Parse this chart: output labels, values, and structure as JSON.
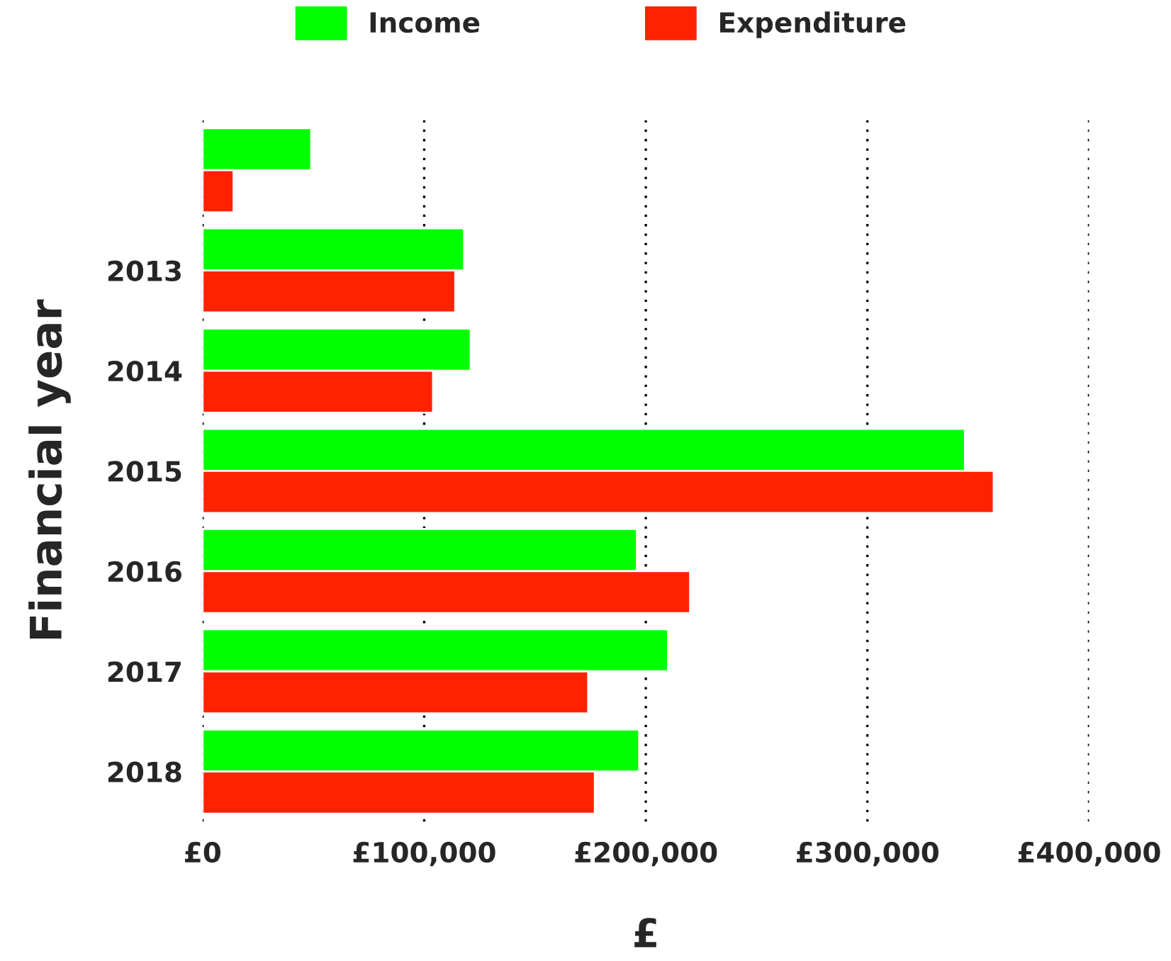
{
  "chart_data": {
    "type": "bar",
    "orientation": "horizontal",
    "xlabel": "£",
    "ylabel": "Financial year",
    "categories": [
      null,
      "2013",
      "2014",
      "2015",
      "2016",
      "2017",
      "2018"
    ],
    "series": [
      {
        "name": "Income",
        "color": "#00ff00",
        "values": [
          49000,
          118000,
          121000,
          344000,
          196000,
          210000,
          197000
        ]
      },
      {
        "name": "Expenditure",
        "color": "#ff2200",
        "values": [
          14000,
          114000,
          104000,
          357000,
          220000,
          174000,
          177000
        ]
      }
    ],
    "xlim": [
      0,
      400000
    ],
    "xticks": [
      {
        "value": 0,
        "label": "£0"
      },
      {
        "value": 100000,
        "label": "£100,000"
      },
      {
        "value": 200000,
        "label": "£200,000"
      },
      {
        "value": 300000,
        "label": "£300,000"
      },
      {
        "value": 400000,
        "label": "£400,000"
      }
    ],
    "grid": "x",
    "legend": "top"
  }
}
